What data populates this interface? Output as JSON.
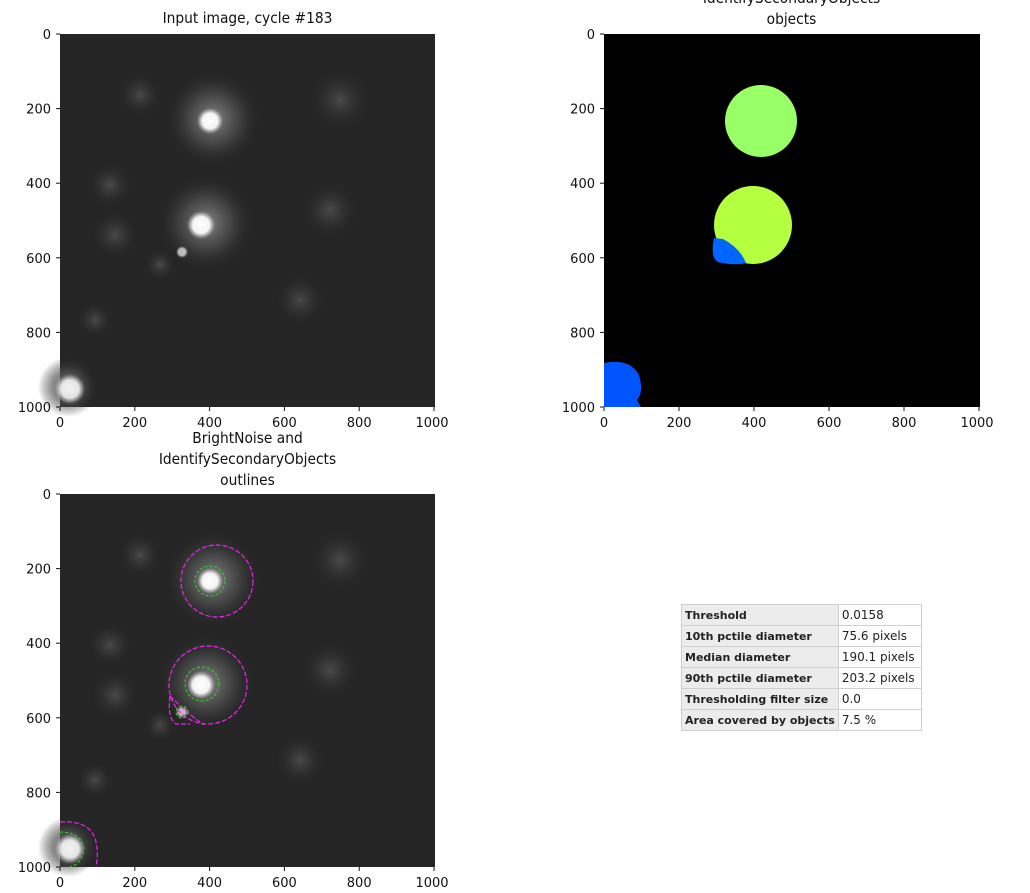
{
  "panels": {
    "input": {
      "title_lines": [
        "Input image, cycle #183"
      ],
      "x_ticks": [
        "0",
        "200",
        "400",
        "600",
        "800",
        "1000"
      ],
      "y_ticks": [
        "0",
        "200",
        "400",
        "600",
        "800",
        "1000"
      ]
    },
    "objects": {
      "title_lines": [
        "IdentifySecondaryObjects",
        "objects"
      ],
      "x_ticks": [
        "0",
        "200",
        "400",
        "600",
        "800",
        "1000"
      ],
      "y_ticks": [
        "0",
        "200",
        "400",
        "600",
        "800",
        "1000"
      ],
      "object_colors": [
        "#99ff66",
        "#b3ff40",
        "#0066ff",
        "#0055ff"
      ]
    },
    "outlines": {
      "title_lines": [
        "BrightNoise and",
        "IdentifySecondaryObjects",
        "outlines"
      ],
      "x_ticks": [
        "0",
        "200",
        "400",
        "600",
        "800",
        "1000"
      ],
      "y_ticks": [
        "0",
        "200",
        "400",
        "600",
        "800",
        "1000"
      ],
      "outline_colors": {
        "primary": "#22dd22",
        "secondary": "#ee22ee"
      }
    }
  },
  "measurements": [
    {
      "label": "Threshold",
      "value": "0.0158"
    },
    {
      "label": "10th pctile diameter",
      "value": "75.6 pixels"
    },
    {
      "label": "Median diameter",
      "value": "190.1 pixels"
    },
    {
      "label": "90th pctile diameter",
      "value": "203.2 pixels"
    },
    {
      "label": "Thresholding filter size",
      "value": "0.0"
    },
    {
      "label": "Area covered by objects",
      "value": "7.5 %"
    }
  ]
}
